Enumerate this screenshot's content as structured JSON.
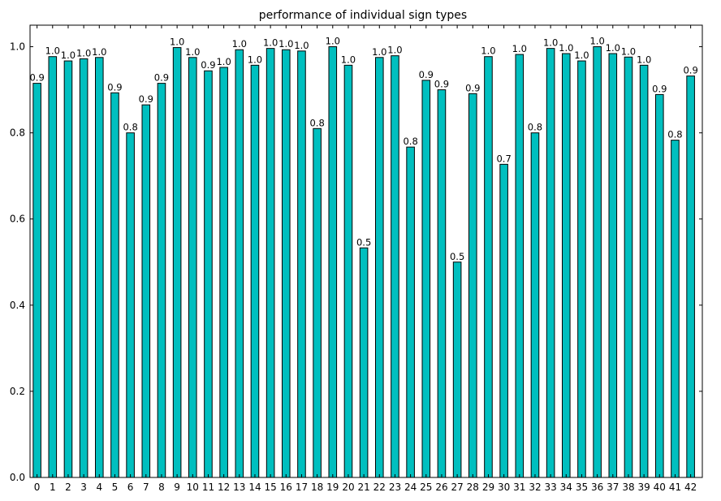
{
  "chart_data": {
    "type": "bar",
    "title": "performance of individual sign types",
    "xlabel": "",
    "ylabel": "",
    "ylim": [
      0.0,
      1.05
    ],
    "yticks": [
      0.0,
      0.2,
      0.4,
      0.6,
      0.8,
      1.0
    ],
    "grid": false,
    "bar_color": "#00bfbf",
    "categories": [
      "0",
      "1",
      "2",
      "3",
      "4",
      "5",
      "6",
      "7",
      "8",
      "9",
      "10",
      "11",
      "12",
      "13",
      "14",
      "15",
      "16",
      "17",
      "18",
      "19",
      "20",
      "21",
      "22",
      "23",
      "24",
      "25",
      "26",
      "27",
      "28",
      "29",
      "30",
      "31",
      "32",
      "33",
      "34",
      "35",
      "36",
      "37",
      "38",
      "39",
      "40",
      "41",
      "42"
    ],
    "values": [
      0.915,
      0.977,
      0.967,
      0.972,
      0.975,
      0.893,
      0.8,
      0.865,
      0.915,
      0.998,
      0.975,
      0.944,
      0.952,
      0.993,
      0.957,
      0.996,
      0.993,
      0.99,
      0.81,
      1.0,
      0.957,
      0.533,
      0.975,
      0.979,
      0.767,
      0.922,
      0.9,
      0.5,
      0.891,
      0.977,
      0.727,
      0.982,
      0.8,
      0.996,
      0.984,
      0.967,
      1.0,
      0.984,
      0.976,
      0.957,
      0.889,
      0.783,
      0.932
    ],
    "data_labels": [
      "0.9",
      "1.0",
      "1.0",
      "1.0",
      "1.0",
      "0.9",
      "0.8",
      "0.9",
      "0.9",
      "1.0",
      "1.0",
      "0.9",
      "1.0",
      "1.0",
      "1.0",
      "1.0",
      "1.0",
      "1.0",
      "0.8",
      "1.0",
      "1.0",
      "0.5",
      "1.0",
      "1.0",
      "0.8",
      "0.9",
      "0.9",
      "0.5",
      "0.9",
      "1.0",
      "0.7",
      "1.0",
      "0.8",
      "1.0",
      "1.0",
      "1.0",
      "1.0",
      "1.0",
      "1.0",
      "1.0",
      "0.9",
      "0.8",
      "0.9"
    ]
  }
}
